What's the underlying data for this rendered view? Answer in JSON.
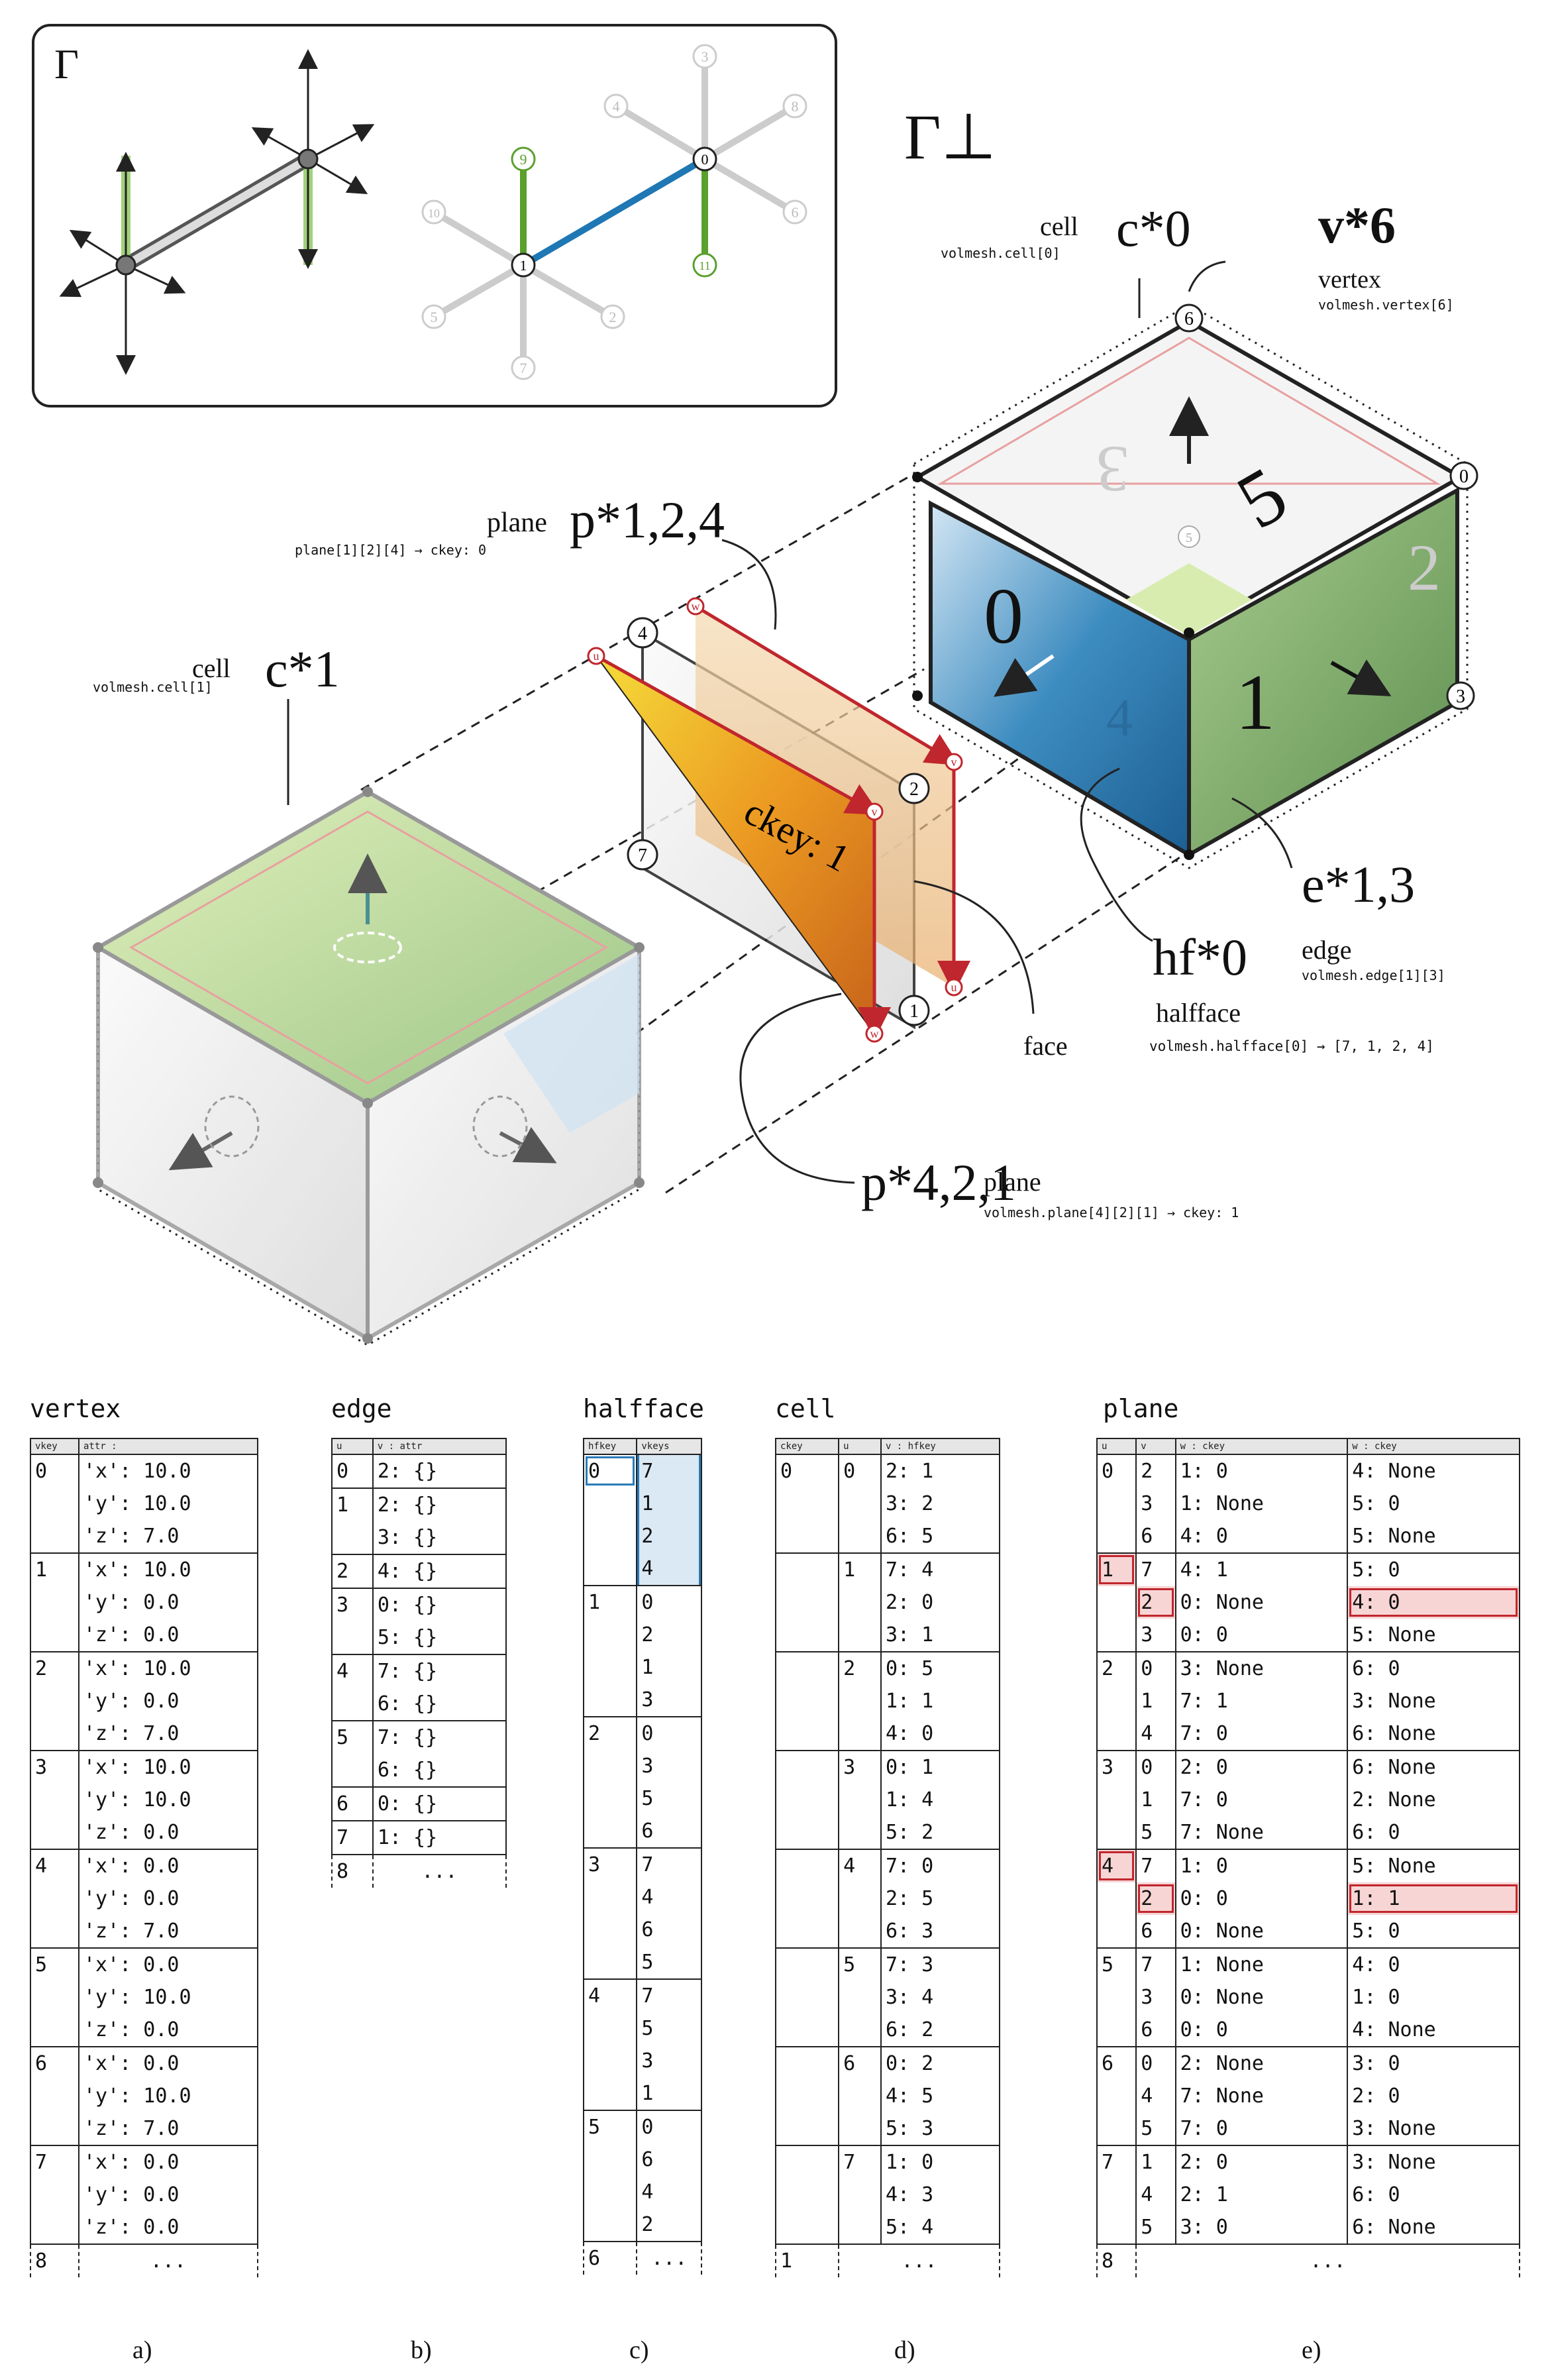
{
  "figure": {
    "inset": {
      "gamma": "Γ",
      "node_labels": [
        "0",
        "1",
        "2",
        "3",
        "4",
        "5",
        "6",
        "7",
        "8",
        "9",
        "10",
        "11"
      ]
    },
    "gamma_perp": "Γ⊥",
    "labels": {
      "cell0_word": "cell",
      "cell0_symbol": "c*0",
      "cell0_code": "volmesh.cell[0]",
      "vertex_word": "vertex",
      "vertex_symbol": "v*6",
      "vertex_code": "volmesh.vertex[6]",
      "plane1_word": "plane",
      "plane1_symbol": "p*1,2,4",
      "plane1_code": "plane[1][2][4] → ckey: 0",
      "cell1_word": "cell",
      "cell1_symbol": "c*1",
      "cell1_code": "volmesh.cell[1]",
      "edge_symbol": "e*1,3",
      "edge_word": "edge",
      "edge_code": "volmesh.edge[1][3]",
      "hf_symbol": "hf*0",
      "hf_word": "halfface",
      "hf_code": "volmesh.halfface[0] → [7, 1, 2, 4]",
      "face_word": "face",
      "plane2_symbol": "p*4,2,1",
      "plane2_word": "plane",
      "plane2_code": "volmesh.plane[4][2][1] → ckey: 1",
      "ckey_text": "ckey: 1",
      "face_numbers": [
        "0",
        "1",
        "5",
        "3",
        "2",
        "4"
      ],
      "vertex_keys": [
        "6",
        "0",
        "5",
        "3",
        "4",
        "2",
        "7",
        "1"
      ],
      "uvw": [
        "u",
        "v",
        "w"
      ]
    }
  },
  "tables": {
    "vertex": {
      "title": "vertex",
      "headers": [
        "vkey",
        "attr :"
      ],
      "rows": [
        {
          "k": "0",
          "attrs": [
            [
              "'x':",
              "10.0"
            ],
            [
              "'y':",
              "10.0"
            ],
            [
              "'z':",
              "7.0"
            ]
          ]
        },
        {
          "k": "1",
          "attrs": [
            [
              "'x':",
              "10.0"
            ],
            [
              "'y':",
              "0.0"
            ],
            [
              "'z':",
              "0.0"
            ]
          ]
        },
        {
          "k": "2",
          "attrs": [
            [
              "'x':",
              "10.0"
            ],
            [
              "'y':",
              "0.0"
            ],
            [
              "'z':",
              "7.0"
            ]
          ]
        },
        {
          "k": "3",
          "attrs": [
            [
              "'x':",
              "10.0"
            ],
            [
              "'y':",
              "10.0"
            ],
            [
              "'z':",
              "0.0"
            ]
          ]
        },
        {
          "k": "4",
          "attrs": [
            [
              "'x':",
              "0.0"
            ],
            [
              "'y':",
              "0.0"
            ],
            [
              "'z':",
              "7.0"
            ]
          ]
        },
        {
          "k": "5",
          "attrs": [
            [
              "'x':",
              "0.0"
            ],
            [
              "'y':",
              "10.0"
            ],
            [
              "'z':",
              "0.0"
            ]
          ]
        },
        {
          "k": "6",
          "attrs": [
            [
              "'x':",
              "0.0"
            ],
            [
              "'y':",
              "10.0"
            ],
            [
              "'z':",
              "7.0"
            ]
          ]
        },
        {
          "k": "7",
          "attrs": [
            [
              "'x':",
              "0.0"
            ],
            [
              "'y':",
              "0.0"
            ],
            [
              "'z':",
              "0.0"
            ]
          ]
        }
      ],
      "end": "8",
      "ellipsis": "..."
    },
    "edge": {
      "title": "edge",
      "headers": [
        "u",
        "v :   attr"
      ],
      "rows": [
        {
          "k": "0",
          "vs": [
            "2: {}"
          ]
        },
        {
          "k": "1",
          "vs": [
            "2: {}",
            "3: {}"
          ]
        },
        {
          "k": "2",
          "vs": [
            "4: {}"
          ]
        },
        {
          "k": "3",
          "vs": [
            "0: {}",
            "5: {}"
          ]
        },
        {
          "k": "4",
          "vs": [
            "7: {}",
            "6: {}"
          ]
        },
        {
          "k": "5",
          "vs": [
            "7: {}",
            "6: {}"
          ]
        },
        {
          "k": "6",
          "vs": [
            "0: {}"
          ]
        },
        {
          "k": "7",
          "vs": [
            "1: {}"
          ]
        }
      ],
      "end": "8",
      "ellipsis": "..."
    },
    "halfface": {
      "title": "halfface",
      "headers": [
        "hfkey",
        "vkeys"
      ],
      "rows": [
        {
          "k": "0",
          "vs": [
            "7",
            "1",
            "2",
            "4"
          ]
        },
        {
          "k": "1",
          "vs": [
            "0",
            "2",
            "1",
            "3"
          ]
        },
        {
          "k": "2",
          "vs": [
            "0",
            "3",
            "5",
            "6"
          ]
        },
        {
          "k": "3",
          "vs": [
            "7",
            "4",
            "6",
            "5"
          ]
        },
        {
          "k": "4",
          "vs": [
            "7",
            "5",
            "3",
            "1"
          ]
        },
        {
          "k": "5",
          "vs": [
            "0",
            "6",
            "4",
            "2"
          ]
        }
      ],
      "end": "6",
      "ellipsis": "..."
    },
    "cell": {
      "title": "cell",
      "headers": [
        "ckey",
        "u",
        "v :  hfkey"
      ],
      "rows": [
        {
          "u": "0",
          "vs": [
            "2: 1",
            "3: 2",
            "6: 5"
          ]
        },
        {
          "u": "1",
          "vs": [
            "7: 4",
            "2: 0",
            "3: 1"
          ]
        },
        {
          "u": "2",
          "vs": [
            "0: 5",
            "1: 1",
            "4: 0"
          ]
        },
        {
          "u": "3",
          "vs": [
            "0: 1",
            "1: 4",
            "5: 2"
          ]
        },
        {
          "u": "4",
          "vs": [
            "7: 0",
            "2: 5",
            "6: 3"
          ]
        },
        {
          "u": "5",
          "vs": [
            "7: 3",
            "3: 4",
            "6: 2"
          ]
        },
        {
          "u": "6",
          "vs": [
            "0: 2",
            "4: 5",
            "5: 3"
          ]
        },
        {
          "u": "7",
          "vs": [
            "1: 0",
            "4: 3",
            "5: 4"
          ]
        }
      ],
      "ckey": "0",
      "end": "1",
      "ellipsis": "..."
    },
    "plane": {
      "title": "plane",
      "headers": [
        "u",
        "v",
        "w :   ckey",
        "w :   ckey"
      ],
      "rows": [
        {
          "u": "0",
          "sub": [
            [
              "2",
              "1:    0",
              "4: None"
            ],
            [
              "3",
              "1: None",
              "5:    0"
            ],
            [
              "6",
              "4:    0",
              "5: None"
            ]
          ]
        },
        {
          "u": "1",
          "sub": [
            [
              "7",
              "4:    1",
              "5:    0"
            ],
            [
              "2",
              "0: None",
              "4:    0"
            ],
            [
              "3",
              "0:    0",
              "5: None"
            ]
          ]
        },
        {
          "u": "2",
          "sub": [
            [
              "0",
              "3: None",
              "6:    0"
            ],
            [
              "1",
              "7:    1",
              "3: None"
            ],
            [
              "4",
              "7:    0",
              "6: None"
            ]
          ]
        },
        {
          "u": "3",
          "sub": [
            [
              "0",
              "2:    0",
              "6: None"
            ],
            [
              "1",
              "7:    0",
              "2: None"
            ],
            [
              "5",
              "7: None",
              "6:    0"
            ]
          ]
        },
        {
          "u": "4",
          "sub": [
            [
              "7",
              "1:    0",
              "5: None"
            ],
            [
              "2",
              "0:    0",
              "1:    1"
            ],
            [
              "6",
              "0: None",
              "5:    0"
            ]
          ]
        },
        {
          "u": "5",
          "sub": [
            [
              "7",
              "1: None",
              "4:    0"
            ],
            [
              "3",
              "0: None",
              "1:    0"
            ],
            [
              "6",
              "0:    0",
              "4: None"
            ]
          ]
        },
        {
          "u": "6",
          "sub": [
            [
              "0",
              "2: None",
              "3:    0"
            ],
            [
              "4",
              "7: None",
              "2:    0"
            ],
            [
              "5",
              "7:    0",
              "3: None"
            ]
          ]
        },
        {
          "u": "7",
          "sub": [
            [
              "1",
              "2:    0",
              "3: None"
            ],
            [
              "4",
              "2:    1",
              "6:    0"
            ],
            [
              "5",
              "3:    0",
              "6: None"
            ]
          ]
        }
      ],
      "end": "8",
      "ellipsis": "..."
    }
  },
  "subfigure_labels": [
    "a)",
    "b)",
    "c)",
    "d)",
    "e)"
  ]
}
